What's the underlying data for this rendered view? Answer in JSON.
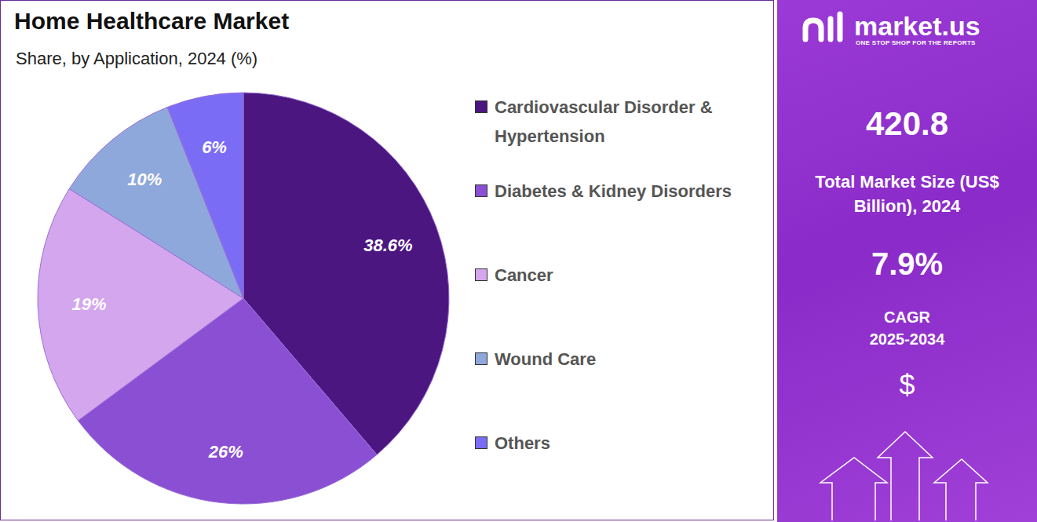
{
  "chart_data": {
    "type": "pie",
    "title": "Home Healthcare Market",
    "subtitle": "Share, by Application, 2024 (%)",
    "categories": [
      "Cardiovascular Disorder & Hypertension",
      "Diabetes & Kidney Disorders",
      "Cancer",
      "Wound Care",
      "Others"
    ],
    "values": [
      38.6,
      26,
      19,
      10,
      6
    ],
    "value_labels": [
      "38.6%",
      "26%",
      "19%",
      "10%",
      "6%"
    ],
    "colors": [
      "#4b1680",
      "#8a4fd3",
      "#d4a6ee",
      "#8fa8dc",
      "#7b6cf6"
    ],
    "data_labels": true,
    "legend": "right"
  },
  "side_panel": {
    "brand": "market.us",
    "tagline": "ONE STOP SHOP FOR THE REPORTS",
    "market_size": "420.8",
    "market_size_label": "Total Market Size (US$ Billion), 2024",
    "cagr": "7.9%",
    "cagr_label": "CAGR",
    "cagr_period": "2025-2034",
    "symbol": "$"
  }
}
